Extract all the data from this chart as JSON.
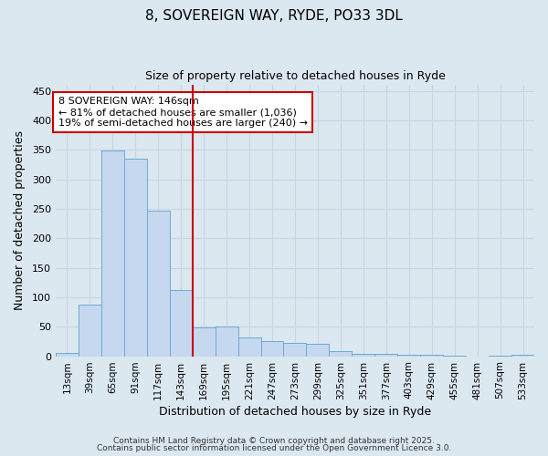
{
  "title_line1": "8, SOVEREIGN WAY, RYDE, PO33 3DL",
  "title_line2": "Size of property relative to detached houses in Ryde",
  "xlabel": "Distribution of detached houses by size in Ryde",
  "ylabel": "Number of detached properties",
  "bin_labels": [
    "13sqm",
    "39sqm",
    "65sqm",
    "91sqm",
    "117sqm",
    "143sqm",
    "169sqm",
    "195sqm",
    "221sqm",
    "247sqm",
    "273sqm",
    "299sqm",
    "325sqm",
    "351sqm",
    "377sqm",
    "403sqm",
    "429sqm",
    "455sqm",
    "481sqm",
    "507sqm",
    "533sqm"
  ],
  "bar_values": [
    6,
    88,
    348,
    335,
    247,
    112,
    49,
    50,
    32,
    25,
    22,
    21,
    8,
    4,
    4,
    3,
    2,
    1,
    0,
    1,
    3
  ],
  "bar_color": "#c5d8f0",
  "bar_edge_color": "#6aaad4",
  "property_line_index": 5,
  "property_line_color": "#cc0000",
  "annotation_text": "8 SOVEREIGN WAY: 146sqm\n← 81% of detached houses are smaller (1,036)\n19% of semi-detached houses are larger (240) →",
  "annotation_box_color": "#ffffff",
  "annotation_box_edge": "#cc0000",
  "ylim": [
    0,
    460
  ],
  "yticks": [
    0,
    50,
    100,
    150,
    200,
    250,
    300,
    350,
    400,
    450
  ],
  "grid_color": "#c8d4e0",
  "bg_color": "#dce8f0",
  "plot_bg_color": "#dce8f0",
  "footer_line1": "Contains HM Land Registry data © Crown copyright and database right 2025.",
  "footer_line2": "Contains public sector information licensed under the Open Government Licence 3.0."
}
